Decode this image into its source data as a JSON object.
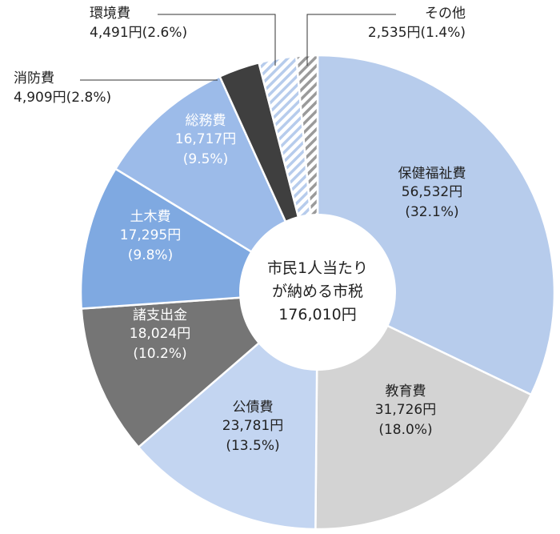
{
  "chart_data": {
    "type": "pie",
    "style": "donut",
    "center_label": [
      "市民1人当たり",
      "が納める市税",
      "176,010円"
    ],
    "slices": [
      {
        "name": "保健福祉費",
        "value": 56532,
        "value_text": "56,532円",
        "percent": 32.1,
        "percent_text": "(32.1%)",
        "color": "#b7ccec",
        "pattern": "solid",
        "text_color": "#222222"
      },
      {
        "name": "教育費",
        "value": 31726,
        "value_text": "31,726円",
        "percent": 18.0,
        "percent_text": "(18.0%)",
        "color": "#d3d3d3",
        "pattern": "solid",
        "text_color": "#222222"
      },
      {
        "name": "公債費",
        "value": 23781,
        "value_text": "23,781円",
        "percent": 13.5,
        "percent_text": "(13.5%)",
        "color": "#c3d5f1",
        "pattern": "solid",
        "text_color": "#222222"
      },
      {
        "name": "諸支出金",
        "value": 18024,
        "value_text": "18,024円",
        "percent": 10.2,
        "percent_text": "(10.2%)",
        "color": "#757575",
        "pattern": "solid",
        "text_color": "#ffffff"
      },
      {
        "name": "土木費",
        "value": 17295,
        "value_text": "17,295円",
        "percent": 9.8,
        "percent_text": "(9.8%)",
        "color": "#7fa9e1",
        "pattern": "solid",
        "text_color": "#ffffff"
      },
      {
        "name": "総務費",
        "value": 16717,
        "value_text": "16,717円",
        "percent": 9.5,
        "percent_text": "(9.5%)",
        "color": "#9cbbe9",
        "pattern": "solid",
        "text_color": "#ffffff"
      },
      {
        "name": "消防費",
        "value": 4909,
        "value_text": "4,909円",
        "percent": 2.8,
        "percent_text": "(2.8%)",
        "color": "#3f3f3f",
        "pattern": "solid",
        "text_color": "#222222"
      },
      {
        "name": "環境費",
        "value": 4491,
        "value_text": "4,491円",
        "percent": 2.6,
        "percent_text": "(2.6%)",
        "color": "#b7ccec",
        "pattern": "hatch",
        "text_color": "#222222"
      },
      {
        "name": "その他",
        "value": 2535,
        "value_text": "2,535円",
        "percent": 1.4,
        "percent_text": "(1.4%)",
        "color": "#9a9a9a",
        "pattern": "hatch",
        "text_color": "#222222"
      }
    ]
  }
}
